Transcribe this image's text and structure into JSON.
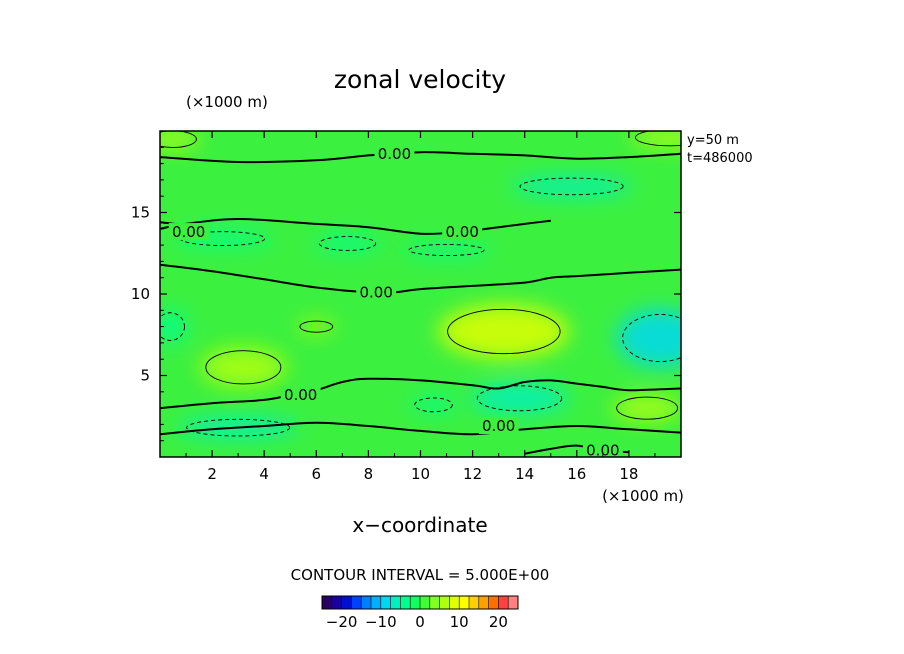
{
  "chart_data": {
    "type": "contour",
    "title": "zonal velocity",
    "xlabel": "x−coordinate",
    "x_unit": "(×1000 m)",
    "y_unit": "(×1000 m)",
    "xlim": [
      0,
      20
    ],
    "ylim": [
      0,
      20
    ],
    "x_ticks": [
      2,
      4,
      6,
      8,
      10,
      12,
      14,
      16,
      18
    ],
    "y_ticks": [
      5,
      10,
      15
    ],
    "info_lines": [
      "y=50  m",
      "t=486000"
    ],
    "contour_interval_text": "CONTOUR INTERVAL = 5.000E+00",
    "contour_level_label": "0.00",
    "contour_levels": [
      -5,
      0,
      5
    ],
    "zero_contours": [
      {
        "points": [
          [
            0,
            18.4
          ],
          [
            3,
            18.1
          ],
          [
            6,
            18.2
          ],
          [
            8,
            18.5
          ],
          [
            10,
            18.7
          ],
          [
            12,
            18.6
          ],
          [
            14,
            18.5
          ],
          [
            16,
            18.3
          ],
          [
            18,
            18.4
          ],
          [
            20,
            18.6
          ]
        ],
        "label_at": [
          9.0,
          18.6
        ]
      },
      {
        "points": [
          [
            0,
            14.0
          ],
          [
            1,
            14.3
          ],
          [
            3,
            14.6
          ],
          [
            6,
            14.3
          ],
          [
            8,
            14.1
          ],
          [
            10,
            13.7
          ],
          [
            11.5,
            13.8
          ],
          [
            13,
            14.1
          ],
          [
            14,
            14.3
          ],
          [
            15,
            14.5
          ]
        ],
        "label_at": [
          11.6,
          13.8
        ]
      },
      {
        "points": [
          [
            0,
            14.4
          ],
          [
            1,
            14.2
          ],
          [
            1.5,
            13.9
          ]
        ],
        "label_at": [
          1.1,
          13.8
        ]
      },
      {
        "points": [
          [
            0,
            11.8
          ],
          [
            2,
            11.4
          ],
          [
            4,
            10.9
          ],
          [
            6,
            10.4
          ],
          [
            8,
            10.1
          ],
          [
            9,
            10.1
          ],
          [
            10,
            10.3
          ],
          [
            12,
            10.5
          ],
          [
            14,
            10.7
          ],
          [
            15,
            11.0
          ],
          [
            16,
            11.1
          ],
          [
            18,
            11.3
          ],
          [
            20,
            11.5
          ]
        ],
        "label_at": [
          8.3,
          10.1
        ]
      },
      {
        "points": [
          [
            0,
            3.0
          ],
          [
            2,
            3.3
          ],
          [
            4,
            3.5
          ],
          [
            5,
            3.8
          ],
          [
            6,
            4.1
          ],
          [
            7,
            4.6
          ],
          [
            8,
            4.8
          ],
          [
            10,
            4.7
          ],
          [
            12,
            4.4
          ],
          [
            13,
            4.2
          ],
          [
            14,
            4.6
          ],
          [
            15,
            4.7
          ],
          [
            16,
            4.5
          ],
          [
            17,
            4.3
          ],
          [
            18,
            4.1
          ],
          [
            20,
            4.2
          ]
        ],
        "label_at": [
          5.4,
          3.8
        ]
      },
      {
        "points": [
          [
            0,
            1.4
          ],
          [
            2,
            1.7
          ],
          [
            4,
            1.9
          ],
          [
            6,
            2.1
          ],
          [
            8,
            1.9
          ],
          [
            10,
            1.6
          ],
          [
            12,
            1.4
          ],
          [
            14,
            1.7
          ],
          [
            16,
            1.9
          ],
          [
            18,
            1.7
          ],
          [
            20,
            1.5
          ]
        ],
        "label_at": [
          13.0,
          1.9
        ]
      },
      {
        "points": [
          [
            14,
            0.2
          ],
          [
            15,
            0.5
          ],
          [
            16,
            0.7
          ],
          [
            17,
            0.4
          ],
          [
            18,
            0.3
          ]
        ],
        "label_at": [
          17.0,
          0.4
        ]
      }
    ],
    "regions": [
      {
        "kind": "positive",
        "cx": 13.2,
        "cy": 7.7,
        "rx": 2.4,
        "ry": 1.6,
        "value": 8
      },
      {
        "kind": "positive",
        "cx": 3.2,
        "cy": 5.5,
        "rx": 1.6,
        "ry": 1.2,
        "value": 6
      },
      {
        "kind": "positive",
        "cx": 18.7,
        "cy": 3.0,
        "rx": 1.3,
        "ry": 0.8,
        "value": 6
      },
      {
        "kind": "positive",
        "cx": 19.6,
        "cy": 19.6,
        "rx": 1.5,
        "ry": 0.6,
        "value": 7
      },
      {
        "kind": "positive",
        "cx": 0.5,
        "cy": 19.5,
        "rx": 1.0,
        "ry": 0.6,
        "value": 6
      },
      {
        "kind": "positive",
        "cx": 6.0,
        "cy": 8.0,
        "rx": 0.7,
        "ry": 0.4,
        "value": 5
      },
      {
        "kind": "negative",
        "cx": 19.2,
        "cy": 7.3,
        "rx": 1.6,
        "ry": 1.7,
        "value": -8
      },
      {
        "kind": "negative",
        "cx": 15.8,
        "cy": 16.6,
        "rx": 2.2,
        "ry": 0.6,
        "value": -6
      },
      {
        "kind": "negative",
        "cx": 2.4,
        "cy": 13.4,
        "rx": 1.8,
        "ry": 0.5,
        "value": -5
      },
      {
        "kind": "negative",
        "cx": 7.2,
        "cy": 13.1,
        "rx": 1.2,
        "ry": 0.5,
        "value": -5
      },
      {
        "kind": "negative",
        "cx": 11.0,
        "cy": 12.7,
        "rx": 1.6,
        "ry": 0.4,
        "value": -5
      },
      {
        "kind": "negative",
        "cx": 13.8,
        "cy": 3.6,
        "rx": 1.8,
        "ry": 0.9,
        "value": -6
      },
      {
        "kind": "negative",
        "cx": 3.0,
        "cy": 1.8,
        "rx": 2.2,
        "ry": 0.6,
        "value": -6
      },
      {
        "kind": "negative",
        "cx": 10.5,
        "cy": 3.2,
        "rx": 0.8,
        "ry": 0.5,
        "value": -5
      },
      {
        "kind": "negative",
        "cx": 0.4,
        "cy": 8.0,
        "rx": 0.6,
        "ry": 1.0,
        "value": -5
      }
    ],
    "colorbar": {
      "tick_labels": [
        "−20",
        "−10",
        "0",
        "10",
        "20"
      ],
      "tick_values": [
        -20,
        -10,
        0,
        10,
        20
      ],
      "range": [
        -25,
        25
      ],
      "colors": [
        "#2a0060",
        "#1a00a0",
        "#0010d0",
        "#0040ff",
        "#0080ff",
        "#00b0ff",
        "#00d8f0",
        "#00f0c0",
        "#00ff90",
        "#10ff60",
        "#40ff30",
        "#80ff20",
        "#b0ff10",
        "#e0ff00",
        "#ffff00",
        "#ffd000",
        "#ffa000",
        "#ff7000",
        "#ff4040",
        "#ff8080"
      ]
    }
  }
}
